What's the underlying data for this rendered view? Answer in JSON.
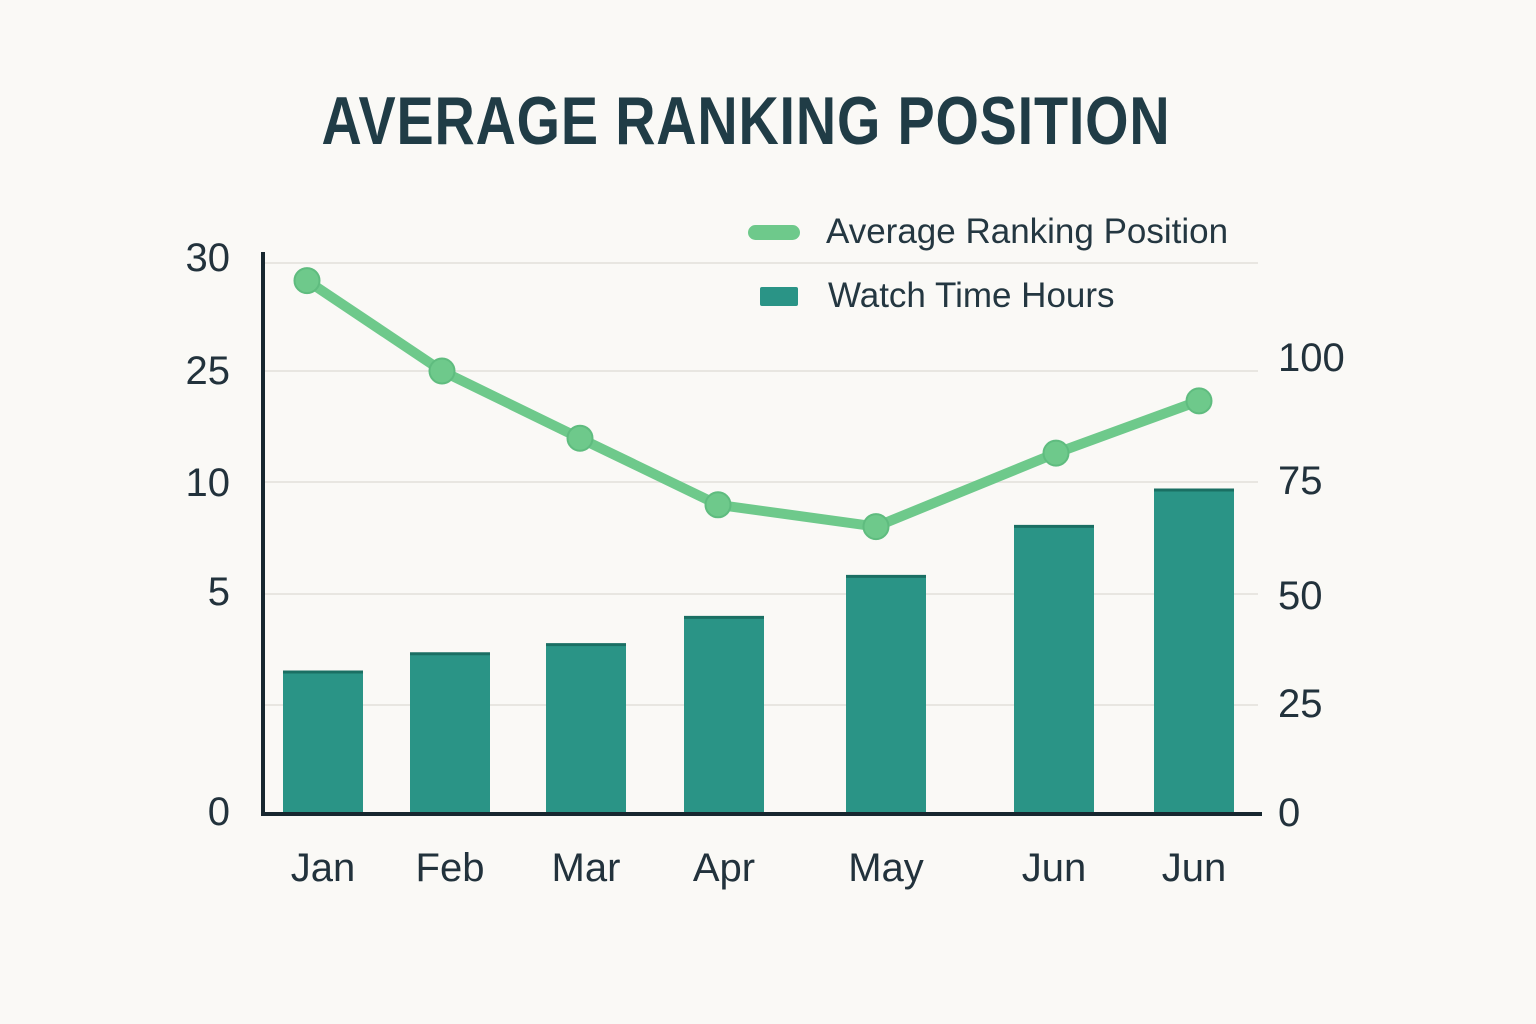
{
  "title": "AVERAGE RANKING POSITION",
  "legend": {
    "items": [
      {
        "label": "Average Ranking Position",
        "swatch": "line-pill",
        "color": "#6ec98b"
      },
      {
        "label": "Watch Time Hours",
        "swatch": "bar-square",
        "color": "#2a9486"
      }
    ]
  },
  "chart_data": {
    "type": "combo",
    "title": "AVERAGE RANKING POSITION",
    "categories": [
      "Jan",
      "Feb",
      "Mar",
      "Apr",
      "May",
      "Jun",
      "Jun"
    ],
    "series": [
      {
        "name": "Average Ranking Position",
        "type": "line",
        "axis": "left",
        "color": "#6ec98b",
        "values": [
          29,
          25,
          16,
          9,
          8,
          14,
          21
        ]
      },
      {
        "name": "Watch Time Hours",
        "type": "bar",
        "axis": "right",
        "color": "#2a9486",
        "values": [
          31,
          35,
          37,
          43,
          52,
          63,
          71
        ]
      }
    ],
    "left_axis_ticks": [
      "30",
      "25",
      "10",
      "5",
      "0"
    ],
    "right_axis_ticks": [
      "100",
      "75",
      "50",
      "25",
      "0"
    ],
    "left_axis_range": [
      0,
      30
    ],
    "right_axis_range": [
      0,
      100
    ],
    "grid": true,
    "legend_position": "top-right"
  },
  "colors": {
    "background": "#faf9f6",
    "title_text": "#203c46",
    "axis_text": "#22323c",
    "axis_line": "#17272f",
    "gridline": "#e8e6e1",
    "line_series": "#6ec98b",
    "bar_series": "#2a9486",
    "bar_top_edge": "#1a6f63"
  }
}
